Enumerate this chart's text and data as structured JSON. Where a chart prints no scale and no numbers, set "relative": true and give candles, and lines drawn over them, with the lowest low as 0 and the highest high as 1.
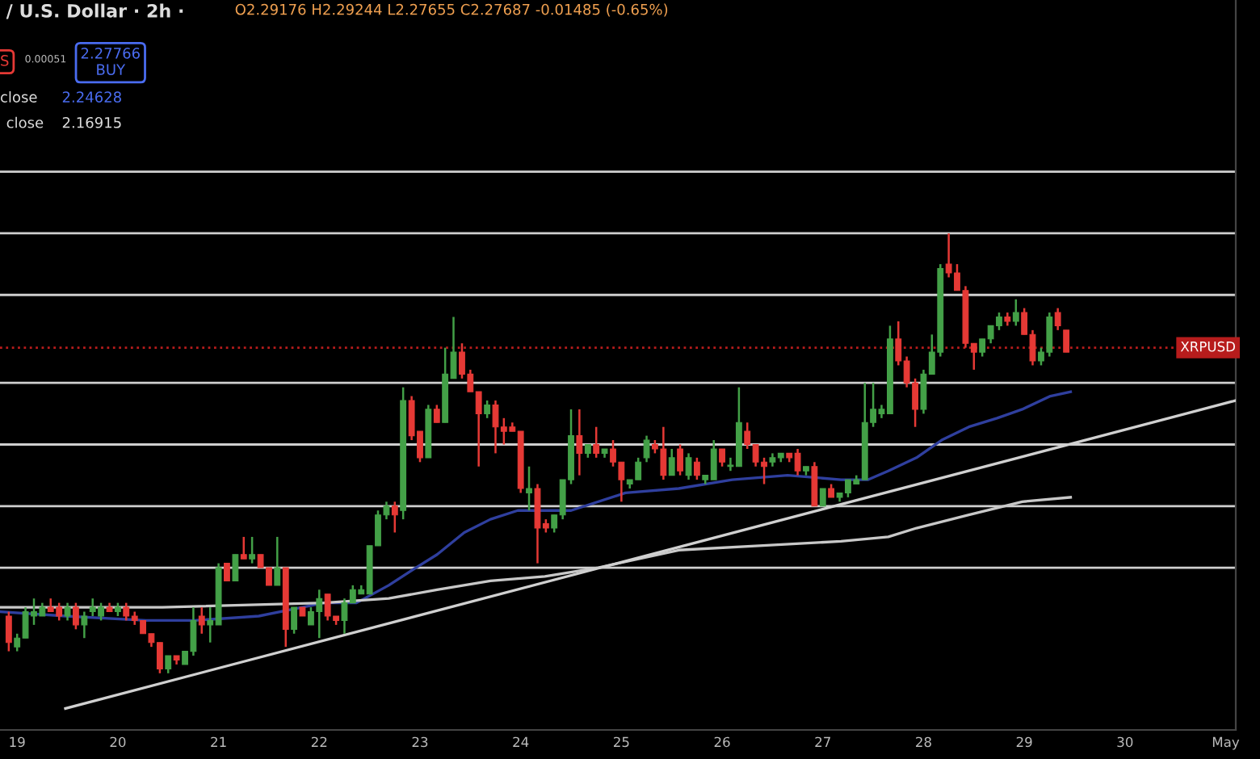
{
  "chart_data": {
    "type": "candlestick",
    "relative": true,
    "title": "/ U.S. Dollar · 2h ·",
    "annotations": [
      "O2.29176 H2.29244 L2.27655 C2.27687 -0.01485 (-0.65%)",
      "S",
      "0.00051",
      "2.27766\nBUY",
      "close",
      "2.24628",
      "close",
      "2.16915"
    ],
    "x": [
      18.917,
      19.0,
      19.083,
      19.167,
      19.25,
      19.333,
      19.417,
      19.5,
      19.583,
      19.667,
      19.75,
      19.833,
      19.917,
      20.0,
      20.083,
      20.167,
      20.25,
      20.333,
      20.417,
      20.5,
      20.583,
      20.667,
      20.75,
      20.833,
      20.917,
      21.0,
      21.083,
      21.167,
      21.25,
      21.333,
      21.417,
      21.5,
      21.583,
      21.667,
      21.75,
      21.833,
      21.917,
      22.0,
      22.083,
      22.167,
      22.25,
      22.333,
      22.417,
      22.5,
      22.583,
      22.667,
      22.75,
      22.833,
      22.917,
      23.0,
      23.083,
      23.167,
      23.25,
      23.333,
      23.417,
      23.5,
      23.583,
      23.667,
      23.75,
      23.833,
      23.917,
      24.0,
      24.083,
      24.167,
      24.25,
      24.333,
      24.417,
      24.5,
      24.583,
      24.667,
      24.75,
      24.833,
      24.917,
      25.0,
      25.083,
      25.167,
      25.25,
      25.333,
      25.417,
      25.5,
      25.583,
      25.667,
      25.75,
      25.833,
      25.917,
      26.0,
      26.083,
      26.167,
      26.25,
      26.333,
      26.417,
      26.5,
      26.583,
      26.667,
      26.75,
      26.833,
      26.917,
      27.0,
      27.083,
      27.167,
      27.25,
      27.333,
      27.417,
      27.5,
      27.583,
      27.667,
      27.75,
      27.833,
      27.917,
      28.0,
      28.083,
      28.167,
      28.25,
      28.333,
      28.417,
      28.5,
      28.583,
      28.667,
      28.75,
      28.833,
      28.917,
      29.0,
      29.083,
      29.167,
      29.25,
      29.333,
      29.417
    ],
    "ohlc": [
      [
        0.13,
        0.14,
        0.05,
        0.07
      ],
      [
        0.06,
        0.09,
        0.05,
        0.08
      ],
      [
        0.08,
        0.15,
        0.08,
        0.14
      ],
      [
        0.13,
        0.17,
        0.11,
        0.14
      ],
      [
        0.13,
        0.16,
        0.13,
        0.15
      ],
      [
        0.15,
        0.17,
        0.14,
        0.14
      ],
      [
        0.15,
        0.16,
        0.12,
        0.13
      ],
      [
        0.13,
        0.16,
        0.12,
        0.15
      ],
      [
        0.15,
        0.16,
        0.1,
        0.11
      ],
      [
        0.11,
        0.14,
        0.08,
        0.13
      ],
      [
        0.14,
        0.17,
        0.13,
        0.15
      ],
      [
        0.13,
        0.16,
        0.12,
        0.15
      ],
      [
        0.15,
        0.16,
        0.14,
        0.14
      ],
      [
        0.14,
        0.16,
        0.13,
        0.15
      ],
      [
        0.15,
        0.16,
        0.12,
        0.13
      ],
      [
        0.13,
        0.14,
        0.11,
        0.12
      ],
      [
        0.12,
        0.12,
        0.09,
        0.09
      ],
      [
        0.09,
        0.09,
        0.06,
        0.07
      ],
      [
        0.07,
        0.07,
        0,
        0.01
      ],
      [
        0.01,
        0.04,
        0,
        0.04
      ],
      [
        0.04,
        0.04,
        0.02,
        0.03
      ],
      [
        0.02,
        0.05,
        0.02,
        0.05
      ],
      [
        0.05,
        0.15,
        0.04,
        0.12
      ],
      [
        0.13,
        0.15,
        0.09,
        0.11
      ],
      [
        0.11,
        0.15,
        0.07,
        0.12
      ],
      [
        0.11,
        0.25,
        0.11,
        0.24
      ],
      [
        0.25,
        0.25,
        0.21,
        0.21
      ],
      [
        0.21,
        0.27,
        0.21,
        0.27
      ],
      [
        0.27,
        0.31,
        0.26,
        0.26
      ],
      [
        0.26,
        0.31,
        0.25,
        0.27
      ],
      [
        0.27,
        0.27,
        0.24,
        0.24
      ],
      [
        0.24,
        0.24,
        0.2,
        0.2
      ],
      [
        0.2,
        0.31,
        0.2,
        0.24
      ],
      [
        0.24,
        0.24,
        0.06,
        0.1
      ],
      [
        0.1,
        0.15,
        0.09,
        0.15
      ],
      [
        0.15,
        0.15,
        0.13,
        0.13
      ],
      [
        0.11,
        0.15,
        0.11,
        0.14
      ],
      [
        0.14,
        0.19,
        0.08,
        0.17
      ],
      [
        0.18,
        0.18,
        0.12,
        0.13
      ],
      [
        0.13,
        0.13,
        0.11,
        0.12
      ],
      [
        0.12,
        0.17,
        0.09,
        0.16
      ],
      [
        0.16,
        0.2,
        0.16,
        0.19
      ],
      [
        0.18,
        0.2,
        0.18,
        0.19
      ],
      [
        0.18,
        0.29,
        0.18,
        0.29
      ],
      [
        0.29,
        0.37,
        0.29,
        0.36
      ],
      [
        0.36,
        0.39,
        0.35,
        0.38
      ],
      [
        0.38,
        0.39,
        0.32,
        0.36
      ],
      [
        0.37,
        0.65,
        0.35,
        0.62
      ],
      [
        0.62,
        0.63,
        0.53,
        0.54
      ],
      [
        0.55,
        0.55,
        0.48,
        0.49
      ],
      [
        0.49,
        0.61,
        0.49,
        0.6
      ],
      [
        0.6,
        0.61,
        0.57,
        0.57
      ],
      [
        0.57,
        0.74,
        0.57,
        0.68
      ],
      [
        0.67,
        0.81,
        0.67,
        0.73
      ],
      [
        0.73,
        0.75,
        0.67,
        0.68
      ],
      [
        0.68,
        0.69,
        0.64,
        0.64
      ],
      [
        0.64,
        0.64,
        0.47,
        0.59
      ],
      [
        0.59,
        0.62,
        0.58,
        0.61
      ],
      [
        0.61,
        0.62,
        0.5,
        0.56
      ],
      [
        0.56,
        0.58,
        0.52,
        0.55
      ],
      [
        0.56,
        0.57,
        0.55,
        0.55
      ],
      [
        0.55,
        0.55,
        0.41,
        0.42
      ],
      [
        0.41,
        0.47,
        0.37,
        0.42
      ],
      [
        0.42,
        0.43,
        0.25,
        0.33
      ],
      [
        0.34,
        0.35,
        0.32,
        0.33
      ],
      [
        0.33,
        0.36,
        0.32,
        0.36
      ],
      [
        0.36,
        0.44,
        0.35,
        0.44
      ],
      [
        0.44,
        0.6,
        0.43,
        0.54
      ],
      [
        0.54,
        0.6,
        0.45,
        0.5
      ],
      [
        0.5,
        0.52,
        0.49,
        0.52
      ],
      [
        0.52,
        0.56,
        0.49,
        0.5
      ],
      [
        0.5,
        0.51,
        0.49,
        0.51
      ],
      [
        0.51,
        0.53,
        0.47,
        0.48
      ],
      [
        0.48,
        0.48,
        0.39,
        0.44
      ],
      [
        0.43,
        0.44,
        0.42,
        0.44
      ],
      [
        0.44,
        0.49,
        0.44,
        0.48
      ],
      [
        0.49,
        0.54,
        0.48,
        0.53
      ],
      [
        0.52,
        0.53,
        0.5,
        0.51
      ],
      [
        0.51,
        0.56,
        0.44,
        0.45
      ],
      [
        0.45,
        0.51,
        0.45,
        0.49
      ],
      [
        0.51,
        0.52,
        0.45,
        0.46
      ],
      [
        0.45,
        0.5,
        0.44,
        0.49
      ],
      [
        0.48,
        0.49,
        0.44,
        0.45
      ],
      [
        0.44,
        0.45,
        0.43,
        0.45
      ],
      [
        0.44,
        0.53,
        0.44,
        0.51
      ],
      [
        0.51,
        0.51,
        0.47,
        0.48
      ],
      [
        0.47,
        0.49,
        0.46,
        0.47
      ],
      [
        0.47,
        0.65,
        0.47,
        0.57
      ],
      [
        0.55,
        0.57,
        0.51,
        0.52
      ],
      [
        0.52,
        0.52,
        0.47,
        0.48
      ],
      [
        0.48,
        0.49,
        0.43,
        0.47
      ],
      [
        0.48,
        0.5,
        0.47,
        0.49
      ],
      [
        0.49,
        0.5,
        0.48,
        0.5
      ],
      [
        0.5,
        0.5,
        0.48,
        0.49
      ],
      [
        0.5,
        0.51,
        0.45,
        0.46
      ],
      [
        0.46,
        0.47,
        0.45,
        0.47
      ],
      [
        0.47,
        0.48,
        0.38,
        0.38
      ],
      [
        0.38,
        0.42,
        0.38,
        0.42
      ],
      [
        0.42,
        0.43,
        0.4,
        0.4
      ],
      [
        0.4,
        0.41,
        0.39,
        0.41
      ],
      [
        0.41,
        0.44,
        0.4,
        0.44
      ],
      [
        0.43,
        0.45,
        0.43,
        0.44
      ],
      [
        0.44,
        0.66,
        0.44,
        0.57
      ],
      [
        0.57,
        0.66,
        0.56,
        0.6
      ],
      [
        0.59,
        0.61,
        0.58,
        0.6
      ],
      [
        0.59,
        0.79,
        0.59,
        0.76
      ],
      [
        0.76,
        0.8,
        0.7,
        0.71
      ],
      [
        0.71,
        0.72,
        0.65,
        0.66
      ],
      [
        0.66,
        0.67,
        0.56,
        0.6
      ],
      [
        0.6,
        0.69,
        0.59,
        0.68
      ],
      [
        0.68,
        0.77,
        0.68,
        0.73
      ],
      [
        0.73,
        0.93,
        0.72,
        0.92
      ],
      [
        0.93,
        1,
        0.9,
        0.91
      ],
      [
        0.91,
        0.93,
        0.87,
        0.87
      ],
      [
        0.87,
        0.88,
        0.74,
        0.75
      ],
      [
        0.75,
        0.75,
        0.69,
        0.73
      ],
      [
        0.73,
        0.76,
        0.72,
        0.76
      ],
      [
        0.76,
        0.79,
        0.75,
        0.79
      ],
      [
        0.79,
        0.82,
        0.78,
        0.81
      ],
      [
        0.81,
        0.82,
        0.79,
        0.8
      ],
      [
        0.8,
        0.85,
        0.79,
        0.82
      ],
      [
        0.82,
        0.83,
        0.77,
        0.77
      ],
      [
        0.77,
        0.78,
        0.7,
        0.71
      ],
      [
        0.71,
        0.74,
        0.7,
        0.73
      ],
      [
        0.73,
        0.82,
        0.72,
        0.81
      ],
      [
        0.82,
        0.83,
        0.78,
        0.79
      ],
      [
        0.78,
        0.78,
        0.73,
        0.73
      ]
    ],
    "colors": [
      "#e53935",
      "#43a047",
      "#43a047",
      "#43a047",
      "#43a047",
      "#e53935",
      "#e53935",
      "#43a047",
      "#e53935",
      "#43a047",
      "#43a047",
      "#43a047",
      "#e53935",
      "#43a047",
      "#e53935",
      "#e53935",
      "#e53935",
      "#e53935",
      "#e53935",
      "#43a047",
      "#e53935",
      "#43a047",
      "#43a047",
      "#e53935",
      "#43a047",
      "#43a047",
      "#e53935",
      "#43a047",
      "#e53935",
      "#43a047",
      "#e53935",
      "#e53935",
      "#43a047",
      "#e53935",
      "#43a047",
      "#e53935",
      "#43a047",
      "#43a047",
      "#e53935",
      "#e53935",
      "#43a047",
      "#43a047",
      "#43a047",
      "#43a047",
      "#43a047",
      "#43a047",
      "#e53935",
      "#43a047",
      "#e53935",
      "#e53935",
      "#43a047",
      "#e53935",
      "#43a047",
      "#43a047",
      "#e53935",
      "#e53935",
      "#e53935",
      "#43a047",
      "#e53935",
      "#e53935",
      "#e53935",
      "#e53935",
      "#43a047",
      "#e53935",
      "#e53935",
      "#43a047",
      "#43a047",
      "#43a047",
      "#e53935",
      "#43a047",
      "#e53935",
      "#43a047",
      "#e53935",
      "#e53935",
      "#43a047",
      "#43a047",
      "#43a047",
      "#e53935",
      "#e53935",
      "#43a047",
      "#e53935",
      "#43a047",
      "#e53935",
      "#43a047",
      "#43a047",
      "#e53935",
      "#43a047",
      "#43a047",
      "#e53935",
      "#e53935",
      "#e53935",
      "#43a047",
      "#43a047",
      "#e53935",
      "#e53935",
      "#43a047",
      "#e53935",
      "#43a047",
      "#e53935",
      "#43a047",
      "#43a047",
      "#43a047",
      "#43a047",
      "#43a047",
      "#43a047",
      "#43a047",
      "#e53935",
      "#e53935",
      "#e53935",
      "#43a047",
      "#43a047",
      "#43a047",
      "#e53935",
      "#e53935",
      "#e53935",
      "#e53935",
      "#43a047",
      "#43a047",
      "#43a047",
      "#e53935",
      "#43a047",
      "#e53935",
      "#e53935",
      "#43a047",
      "#43a047",
      "#e53935",
      "#e53935"
    ],
    "series": [
      {
        "type": "line",
        "color": "#2f3f9e",
        "x": [
          18.84,
          19.48,
          20.28,
          20.76,
          21.4,
          22.05,
          22.37,
          22.69,
          22.96,
          23.17,
          23.44,
          23.7,
          23.97,
          24.5,
          25.04,
          25.57,
          26.1,
          26.65,
          27.18,
          27.45,
          27.65,
          27.93,
          28.18,
          28.45,
          28.73,
          28.98,
          29.26,
          29.46
        ],
        "values": [
          0.14,
          0.13,
          0.12,
          0.12,
          0.13,
          0.16,
          0.16,
          0.2,
          0.24,
          0.27,
          0.32,
          0.35,
          0.37,
          0.37,
          0.41,
          0.42,
          0.44,
          0.45,
          0.44,
          0.44,
          0.46,
          0.49,
          0.53,
          0.56,
          0.58,
          0.6,
          0.63,
          0.64
        ]
      },
      {
        "type": "line",
        "color": "#c8c8c8",
        "x": [
          18.84,
          20.44,
          22.05,
          22.69,
          23.17,
          23.7,
          24.24,
          24.77,
          25.57,
          26.37,
          27.18,
          27.65,
          27.93,
          28.45,
          28.98,
          29.46
        ],
        "values": [
          0.15,
          0.15,
          0.16,
          0.17,
          0.19,
          0.21,
          0.22,
          0.24,
          0.28,
          0.29,
          0.3,
          0.31,
          0.33,
          0.36,
          0.39,
          0.4
        ]
      },
      {
        "type": "line",
        "color": "#d0d0d0",
        "x": [
          19.48,
          31.1
        ],
        "values": [
          -0.08,
          0.62
        ]
      }
    ],
    "ref_lines": [
      {
        "axis": "y",
        "value": 1.14,
        "color": "#cfcfcf"
      },
      {
        "axis": "y",
        "value": 1.0,
        "color": "#cfcfcf"
      },
      {
        "axis": "y",
        "value": 0.86,
        "color": "#cfcfcf"
      },
      {
        "axis": "y",
        "value": 0.66,
        "color": "#cfcfcf"
      },
      {
        "axis": "y",
        "value": 0.52,
        "color": "#cfcfcf"
      },
      {
        "axis": "y",
        "value": 0.38,
        "color": "#cfcfcf"
      },
      {
        "axis": "y",
        "value": 0.24,
        "color": "#cfcfcf"
      },
      {
        "axis": "y",
        "value": 0.74,
        "color": "#b71c1c",
        "line_style": "dotted",
        "label": "XRPUSD"
      }
    ],
    "xlim": [
      18.83,
      31.1
    ],
    "xticks": [
      19,
      20,
      21,
      22,
      23,
      24,
      25,
      26,
      27,
      28,
      29,
      30,
      {
        "value": 31,
        "label": "May"
      }
    ]
  }
}
